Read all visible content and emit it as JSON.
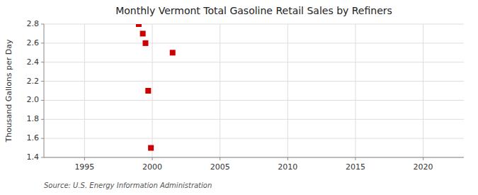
{
  "chart_data": {
    "type": "scatter",
    "title": "Monthly Vermont Total Gasoline Retail Sales by Refiners",
    "ylabel": "Thousand Gallons per Day",
    "source": "Source: U.S. Energy Information Administration",
    "x": [
      1999.0,
      1999.3,
      1999.5,
      1999.7,
      1999.9,
      2001.5
    ],
    "values": [
      2.8,
      2.7,
      2.6,
      2.1,
      1.5,
      2.5
    ],
    "color": "#cc0000",
    "marker": "square",
    "xlim": [
      1992,
      2023
    ],
    "ylim": [
      1.4,
      2.8
    ],
    "xticks": [
      1995,
      2000,
      2005,
      2010,
      2015,
      2020
    ],
    "yticks": [
      1.4,
      1.6,
      1.8,
      {
        "value": 2.0,
        "label": "2.0"
      },
      2.2,
      2.4,
      2.6,
      2.8
    ],
    "grid": true
  }
}
